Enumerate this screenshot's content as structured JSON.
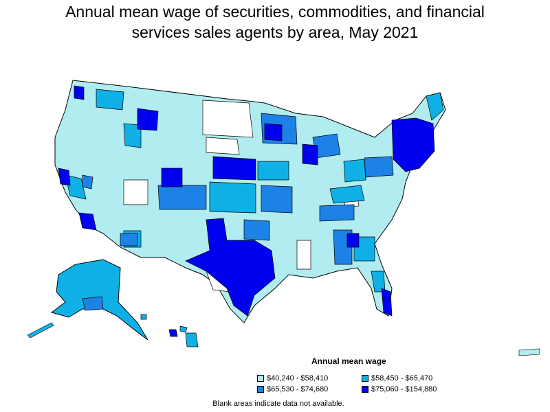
{
  "title": {
    "line1": "Annual mean wage of securities, commodities, and financial",
    "line2": "services sales agents by area, May 2021"
  },
  "legend": {
    "title": "Annual mean wage",
    "items": [
      {
        "label": "$40,240 - $58,410",
        "color": "#b0ecf0"
      },
      {
        "label": "$58,450 - $65,470",
        "color": "#0fb0e6"
      },
      {
        "label": "$65,530 - $74,680",
        "color": "#1c82e6"
      },
      {
        "label": "$75,060 - $154,880",
        "color": "#0000f0"
      }
    ]
  },
  "note": "Blank areas indicate data not available.",
  "map_colors": {
    "c1": "#b0ecf0",
    "c2": "#0fb0e6",
    "c3": "#1c82e6",
    "c4": "#0000f0",
    "blank": "#ffffff",
    "border": "#000000"
  }
}
